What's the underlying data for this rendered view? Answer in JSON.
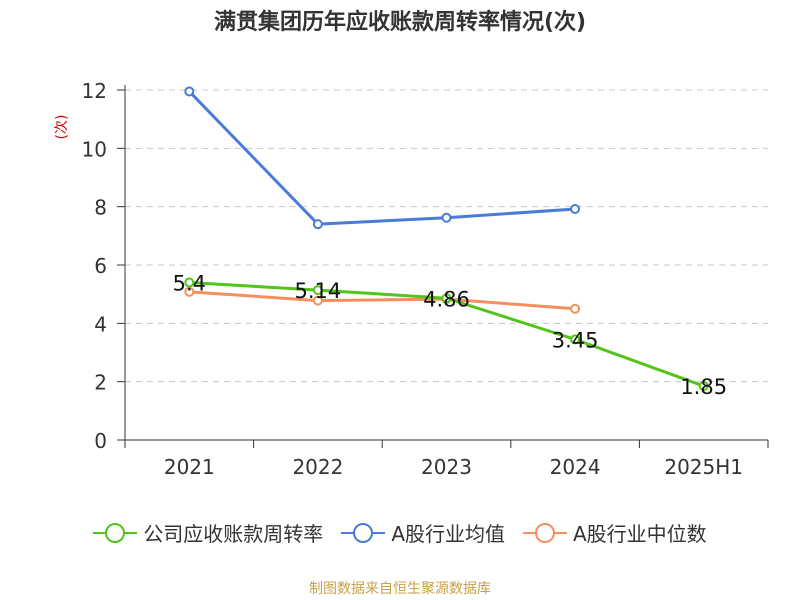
{
  "title": "满贯集团历年应收账款周转率情况(次)",
  "footer": "制图数据来自恒生聚源数据库",
  "colors": {
    "footer": "#c8a04a",
    "ylabel": "#d60000"
  },
  "chart_data": {
    "type": "line",
    "categories": [
      "2021",
      "2022",
      "2023",
      "2024",
      "2025H1"
    ],
    "ylabel": "(次)",
    "ylim": [
      0,
      12
    ],
    "yticks": [
      0,
      2,
      4,
      6,
      8,
      10,
      12
    ],
    "grid": true,
    "legend_position": "bottom",
    "series": [
      {
        "name": "公司应收账款周转率",
        "color": "#52c41a",
        "values": [
          5.4,
          5.14,
          4.86,
          3.45,
          1.85
        ],
        "labels": [
          "5.4",
          "5.14",
          "4.86",
          "3.45",
          "1.85"
        ]
      },
      {
        "name": "A股行业均值",
        "color": "#4a7bd8",
        "values": [
          11.95,
          7.4,
          7.62,
          7.92,
          null
        ]
      },
      {
        "name": "A股行业中位数",
        "color": "#f4905e",
        "values": [
          5.08,
          4.78,
          4.83,
          4.5,
          null
        ]
      }
    ]
  }
}
